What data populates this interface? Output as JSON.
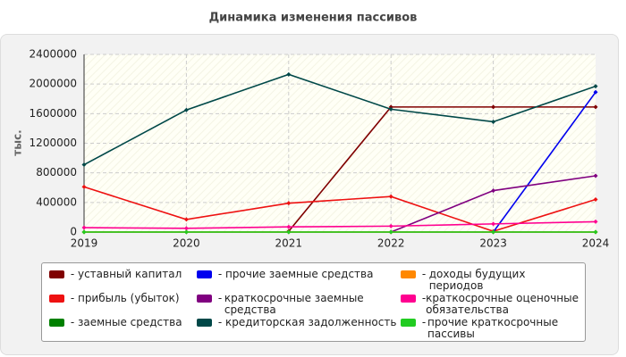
{
  "chart_data": {
    "type": "line",
    "title": "Динамика изменения пассивов",
    "y_label": "тыс.",
    "categories": [
      "2019",
      "2020",
      "2021",
      "2022",
      "2023",
      "2024"
    ],
    "ylim": [
      0,
      2400000
    ],
    "yticks": [
      0,
      400000,
      800000,
      1200000,
      1600000,
      2000000,
      2400000
    ],
    "grid": true,
    "series": [
      {
        "name": "уставный капитал",
        "color": "#800000",
        "values": [
          null,
          null,
          10000,
          1690000,
          1690000,
          1690000
        ]
      },
      {
        "name": "прибыль (убыток)",
        "color": "#ee1111",
        "values": [
          610000,
          170000,
          390000,
          480000,
          10000,
          440000
        ]
      },
      {
        "name": "заемные средства",
        "color": "#008000",
        "values": [
          0,
          0,
          0,
          0,
          0,
          0
        ]
      },
      {
        "name": "прочие заемные средства",
        "color": "#0000ee",
        "values": [
          null,
          null,
          null,
          null,
          0,
          1890000
        ]
      },
      {
        "name": "краткосрочные заемные средства",
        "color": "#800080",
        "values": [
          null,
          null,
          null,
          0,
          560000,
          760000
        ]
      },
      {
        "name": "кредиторская задолженность",
        "color": "#004848",
        "values": [
          910000,
          1650000,
          2130000,
          1660000,
          1490000,
          1970000
        ]
      },
      {
        "name": "доходы будущих периодов",
        "color": "#ff8800",
        "values": [
          0,
          0,
          0,
          0,
          0,
          0
        ]
      },
      {
        "name": "краткосрочные оценочные обязательства",
        "color": "#ff0090",
        "values": [
          60000,
          50000,
          70000,
          80000,
          110000,
          140000
        ]
      },
      {
        "name": "прочие краткосрочные пассивы",
        "color": "#22cc22",
        "values": [
          0,
          0,
          0,
          0,
          0,
          0
        ]
      }
    ]
  }
}
